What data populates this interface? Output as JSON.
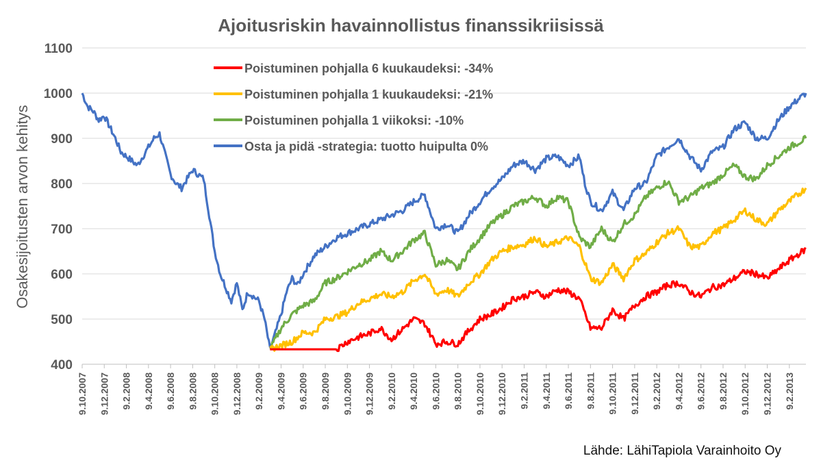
{
  "chart_data": {
    "type": "line",
    "title": "Ajoitusriskin havainnollistus finanssikriisissä",
    "ylabel": "Osakesijoitusten arvon kehitys",
    "xlabel": "",
    "ylim": [
      400,
      1100
    ],
    "yticks": [
      400,
      500,
      600,
      700,
      800,
      900,
      1000,
      1100
    ],
    "xticks": [
      "9.10.2007",
      "9.12.2007",
      "9.2.2008",
      "9.4.2008",
      "9.6.2008",
      "9.8.2008",
      "9.10.2008",
      "9.12.2008",
      "9.2.2009",
      "9.4.2009",
      "9.6.2009",
      "9.8.2009",
      "9.10.2009",
      "9.12.2009",
      "9.2.2010",
      "9.4.2010",
      "9.6.2010",
      "9.8.2010",
      "9.10.2010",
      "9.12.2010",
      "9.2.2011",
      "9.4.2011",
      "9.6.2011",
      "9.8.2011",
      "9.10.2011",
      "9.12.2011",
      "9.2.2012",
      "9.4.2012",
      "9.6.2012",
      "9.8.2012",
      "9.10.2012",
      "9.12.2012",
      "9.2.2013"
    ],
    "x_months": [
      0,
      2,
      4,
      6,
      8,
      10,
      12,
      14,
      16,
      18,
      20,
      22,
      24,
      26,
      28,
      30,
      32,
      34,
      36,
      38,
      40,
      42,
      44,
      46,
      48,
      50,
      52,
      54,
      56,
      58,
      60,
      62,
      64
    ],
    "grid": true,
    "legend_position": "top-left",
    "series": [
      {
        "name": "Poistuminen pohjalla 6 kuukaudeksi: -34%",
        "color": "#ff0000",
        "start_month": 17,
        "x": [
          17,
          23,
          24,
          25,
          26,
          27,
          28,
          29,
          30,
          31,
          32,
          33,
          34,
          35,
          36,
          37,
          38,
          39,
          40,
          41,
          42,
          43,
          44,
          45,
          46,
          47,
          48,
          49,
          50,
          51,
          52,
          53,
          54,
          55,
          56,
          57,
          58,
          59,
          60,
          61,
          62,
          63,
          64,
          65.5
        ],
        "y": [
          433,
          433,
          450,
          460,
          468,
          480,
          455,
          478,
          500,
          490,
          445,
          450,
          445,
          475,
          500,
          510,
          525,
          545,
          550,
          560,
          550,
          565,
          560,
          545,
          480,
          480,
          520,
          500,
          530,
          550,
          560,
          575,
          580,
          560,
          550,
          570,
          575,
          590,
          605,
          600,
          590,
          610,
          630,
          655
        ]
      },
      {
        "name": "Poistuminen pohjalla 1 kuukaudeksi: -21%",
        "color": "#ffc000",
        "start_month": 17,
        "x": [
          17,
          19,
          20,
          21,
          22,
          23,
          24,
          25,
          26,
          27,
          28,
          29,
          30,
          31,
          32,
          33,
          34,
          35,
          36,
          37,
          38,
          39,
          40,
          41,
          42,
          43,
          44,
          45,
          46,
          47,
          48,
          49,
          50,
          51,
          52,
          53,
          54,
          55,
          56,
          57,
          58,
          59,
          60,
          61,
          62,
          63,
          64,
          65.5
        ],
        "y": [
          433,
          450,
          470,
          470,
          500,
          505,
          515,
          535,
          545,
          555,
          550,
          560,
          585,
          600,
          555,
          565,
          550,
          580,
          600,
          630,
          650,
          660,
          665,
          680,
          660,
          670,
          680,
          660,
          590,
          580,
          620,
          590,
          630,
          645,
          670,
          690,
          700,
          660,
          660,
          690,
          700,
          720,
          740,
          720,
          710,
          740,
          760,
          790
        ]
      },
      {
        "name": "Poistuminen pohjalla 1 viikoksi: -10%",
        "color": "#70ad47",
        "start_month": 17,
        "x": [
          17,
          18,
          19,
          20,
          21,
          22,
          23,
          24,
          25,
          26,
          27,
          28,
          29,
          30,
          31,
          32,
          33,
          34,
          35,
          36,
          37,
          38,
          39,
          40,
          41,
          42,
          43,
          44,
          45,
          46,
          47,
          48,
          49,
          50,
          51,
          52,
          53,
          54,
          55,
          56,
          57,
          58,
          59,
          60,
          61,
          62,
          63,
          64,
          65.5
        ],
        "y": [
          433,
          480,
          510,
          530,
          540,
          580,
          590,
          605,
          620,
          630,
          650,
          630,
          650,
          675,
          690,
          620,
          630,
          610,
          650,
          680,
          710,
          730,
          750,
          760,
          770,
          750,
          770,
          760,
          680,
          660,
          700,
          670,
          710,
          730,
          770,
          790,
          805,
          760,
          770,
          790,
          800,
          820,
          840,
          815,
          810,
          840,
          860,
          880,
          900
        ]
      },
      {
        "name": "Osta ja pidä -strategia: tuotto huipulta 0%",
        "color": "#4472c4",
        "start_month": 0,
        "x": [
          0,
          0.5,
          1,
          1.5,
          2,
          3,
          3.5,
          4,
          5,
          6,
          6.5,
          7,
          8,
          8.5,
          9,
          10,
          11,
          11.5,
          12,
          12.5,
          13,
          13.5,
          14,
          14.5,
          15,
          16,
          16.5,
          17,
          17.5,
          18,
          18.5,
          19,
          19.5,
          20,
          20.5,
          21,
          22,
          23,
          24,
          25,
          26,
          27,
          28,
          29,
          30,
          31,
          32,
          33,
          34,
          35,
          36,
          37,
          38,
          39,
          40,
          41,
          42,
          43,
          44,
          45,
          45.5,
          46,
          47,
          48,
          49,
          50,
          51,
          52,
          53,
          54,
          55,
          56,
          57,
          58,
          59,
          60,
          61,
          62,
          63,
          64,
          65.5
        ],
        "y": [
          1000,
          970,
          960,
          940,
          950,
          900,
          870,
          860,
          840,
          880,
          900,
          910,
          820,
          800,
          790,
          830,
          810,
          730,
          650,
          600,
          570,
          540,
          580,
          520,
          560,
          540,
          500,
          433,
          470,
          510,
          560,
          590,
          575,
          600,
          620,
          640,
          660,
          680,
          690,
          700,
          710,
          720,
          730,
          740,
          760,
          775,
          700,
          710,
          690,
          730,
          760,
          790,
          810,
          840,
          850,
          830,
          855,
          860,
          840,
          860,
          800,
          760,
          740,
          780,
          740,
          790,
          800,
          860,
          880,
          900,
          860,
          830,
          870,
          880,
          920,
          935,
          900,
          900,
          940,
          970,
          1000
        ]
      }
    ],
    "source": "Lähde: LähiTapiola Varainhoito Oy"
  }
}
